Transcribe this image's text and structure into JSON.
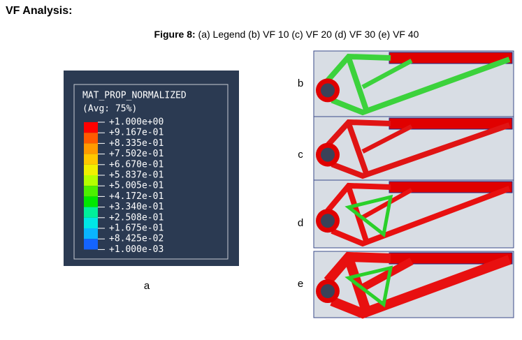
{
  "heading": "VF Analysis:",
  "caption": {
    "label": "Figure 8:",
    "text": "(a) Legend (b) VF 10 (c) VF 20 (d) VF 30 (e) VF 40"
  },
  "legend": {
    "title": "MAT_PROP_NORMALIZED",
    "subtitle": "(Avg: 75%)",
    "values": [
      "+1.000e+00",
      "+9.167e-01",
      "+8.335e-01",
      "+7.502e-01",
      "+6.670e-01",
      "+5.837e-01",
      "+5.005e-01",
      "+4.172e-01",
      "+3.340e-01",
      "+2.508e-01",
      "+1.675e-01",
      "+8.425e-02",
      "+1.000e-03"
    ],
    "colors": [
      "#ff0000",
      "#ff5a00",
      "#ff9a00",
      "#ffc800",
      "#f0f000",
      "#b4ff00",
      "#4cf000",
      "#00e800",
      "#00f09a",
      "#00e6e6",
      "#0ab4ff",
      "#1464ff",
      "#0000f0"
    ]
  },
  "panels": [
    {
      "label": "a"
    },
    {
      "label": "b"
    },
    {
      "label": "c"
    },
    {
      "label": "d"
    },
    {
      "label": "e"
    }
  ]
}
